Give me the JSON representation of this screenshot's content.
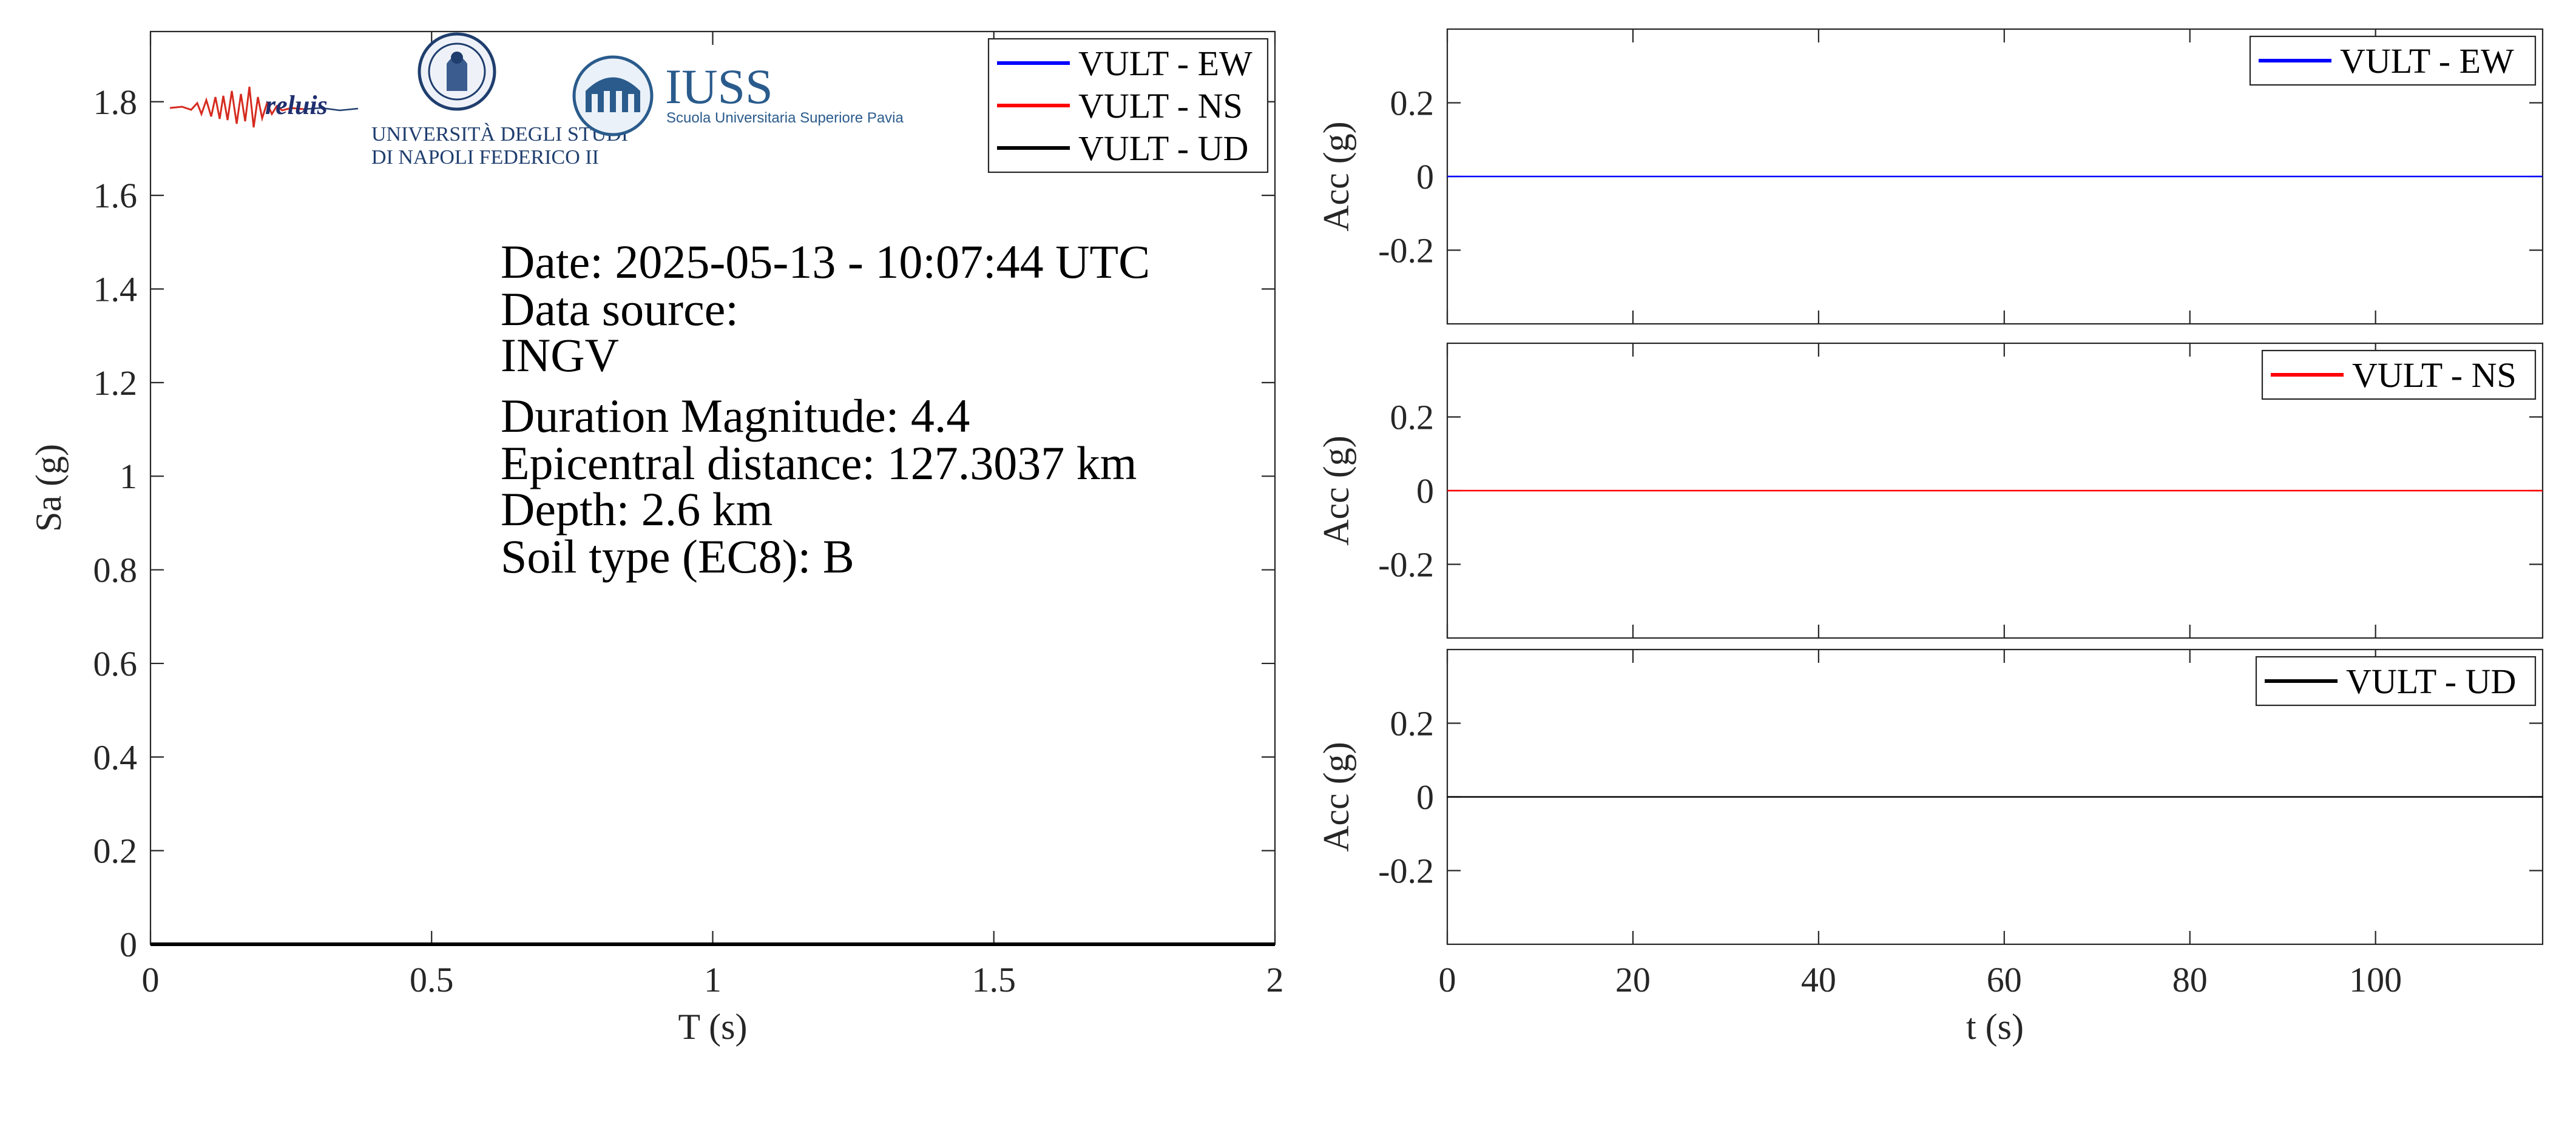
{
  "colors": {
    "ew": "#0000ff",
    "ns": "#ff0000",
    "ud": "#000000",
    "ns_trace": "#d62b1f",
    "ew_trace": "#3355cc"
  },
  "logos": {
    "reluis": "reluis",
    "unina_line1": "UNIVERSITÀ DEGLI STUDI",
    "unina_line2": "DI NAPOLI FEDERICO II",
    "iuss_title": "IUSS",
    "iuss_subtitle": "Scuola Universitaria Superiore Pavia"
  },
  "info": {
    "date": "Date: 2025-05-13 - 10:07:44 UTC",
    "source_label": "Data source:",
    "source_value": "INGV",
    "magnitude": "Duration Magnitude: 4.4",
    "distance": "Epicentral distance: 127.3037 km",
    "depth": "Depth: 2.6 km",
    "soil": "Soil type (EC8): B"
  },
  "chart_data": [
    {
      "type": "line",
      "xlabel": "T (s)",
      "ylabel": "Sa (g)",
      "xlim": [
        0,
        2
      ],
      "ylim": [
        0,
        1.95
      ],
      "xticks": [
        0,
        0.5,
        1,
        1.5,
        2
      ],
      "xtick_labels": [
        "0",
        "0.5",
        "1",
        "1.5",
        "2"
      ],
      "yticks": [
        0,
        0.2,
        0.4,
        0.6,
        0.8,
        1,
        1.2,
        1.4,
        1.6,
        1.8
      ],
      "ytick_labels": [
        "0",
        "0.2",
        "0.4",
        "0.6",
        "0.8",
        "1",
        "1.2",
        "1.4",
        "1.6",
        "1.8"
      ],
      "legend": "top-right",
      "grid": false,
      "series": [
        {
          "name": "VULT - EW",
          "color": "#0000ff",
          "x": [
            0,
            2
          ],
          "y": [
            0,
            0
          ]
        },
        {
          "name": "VULT - NS",
          "color": "#ff0000",
          "x": [
            0,
            2
          ],
          "y": [
            0,
            0
          ]
        },
        {
          "name": "VULT - UD",
          "color": "#000000",
          "x": [
            0,
            2
          ],
          "y": [
            0,
            0
          ]
        }
      ]
    },
    {
      "type": "line",
      "xlabel": "",
      "ylabel": "Acc (g)",
      "xlim": [
        0,
        118
      ],
      "ylim": [
        -0.4,
        0.4
      ],
      "yticks": [
        -0.2,
        0,
        0.2
      ],
      "ytick_labels": [
        "-0.2",
        "0",
        "0.2"
      ],
      "legend": "top-right",
      "grid": false,
      "series": [
        {
          "name": "VULT - EW",
          "color": "#0000ff",
          "x": [
            0,
            118
          ],
          "y": [
            0,
            0
          ]
        }
      ]
    },
    {
      "type": "line",
      "xlabel": "",
      "ylabel": "Acc (g)",
      "xlim": [
        0,
        118
      ],
      "ylim": [
        -0.4,
        0.4
      ],
      "yticks": [
        -0.2,
        0,
        0.2
      ],
      "ytick_labels": [
        "-0.2",
        "0",
        "0.2"
      ],
      "legend": "top-right",
      "grid": false,
      "series": [
        {
          "name": "VULT - NS",
          "color": "#ff0000",
          "x": [
            0,
            118
          ],
          "y": [
            0,
            0
          ]
        }
      ]
    },
    {
      "type": "line",
      "xlabel": "t (s)",
      "ylabel": "Acc (g)",
      "xlim": [
        0,
        118
      ],
      "ylim": [
        -0.4,
        0.4
      ],
      "xticks": [
        0,
        20,
        40,
        60,
        80,
        100
      ],
      "xtick_labels": [
        "0",
        "20",
        "40",
        "60",
        "80",
        "100"
      ],
      "yticks": [
        -0.2,
        0,
        0.2
      ],
      "ytick_labels": [
        "-0.2",
        "0",
        "0.2"
      ],
      "legend": "top-right",
      "grid": false,
      "series": [
        {
          "name": "VULT - UD",
          "color": "#000000",
          "x": [
            0,
            118
          ],
          "y": [
            0,
            0
          ]
        }
      ]
    }
  ]
}
